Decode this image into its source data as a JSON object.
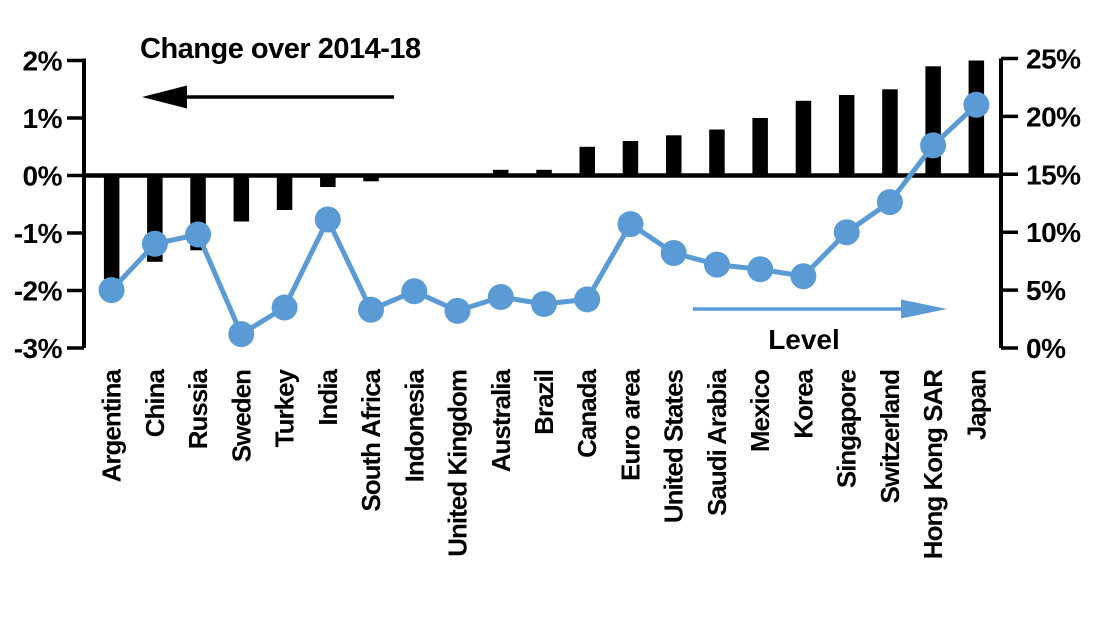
{
  "chart_data": {
    "type": "combo-bar-line",
    "categories": [
      "Argentina",
      "China",
      "Russia",
      "Sweden",
      "Turkey",
      "India",
      "South Africa",
      "Indonesia",
      "United Kingdom",
      "Australia",
      "Brazil",
      "Canada",
      "Euro area",
      "United States",
      "Saudi Arabia",
      "Mexico",
      "Korea",
      "Singapore",
      "Switzerland",
      "Hong Kong SAR",
      "Japan"
    ],
    "series": [
      {
        "name": "Change over 2014-18",
        "type": "bar",
        "axis": "left",
        "color": "#000000",
        "values": [
          -1.8,
          -1.5,
          -1.3,
          -0.8,
          -0.6,
          -0.2,
          -0.1,
          0,
          0,
          0.1,
          0.1,
          0.5,
          0.6,
          0.7,
          0.8,
          1.0,
          1.3,
          1.4,
          1.5,
          1.9,
          2.0
        ]
      },
      {
        "name": "Level",
        "type": "line",
        "axis": "right",
        "color": "#5B9BD5",
        "values": [
          5.0,
          9.0,
          9.8,
          1.2,
          3.5,
          11.1,
          3.3,
          4.9,
          3.2,
          4.4,
          3.8,
          4.2,
          10.7,
          8.2,
          7.2,
          6.8,
          6.2,
          10.0,
          12.6,
          17.5,
          21.0
        ]
      }
    ],
    "left_axis": {
      "tick_labels": [
        "2%",
        "1%",
        "0%",
        "-1%",
        "-2%",
        "-3%"
      ],
      "tick_values": [
        2,
        1,
        0,
        -1,
        -2,
        -3
      ],
      "min": -3,
      "max": 2
    },
    "right_axis": {
      "tick_labels": [
        "25%",
        "20%",
        "15%",
        "10%",
        "5%",
        "0%"
      ],
      "tick_values": [
        25,
        20,
        15,
        10,
        5,
        0
      ],
      "min": 0,
      "max": 25
    },
    "annotations": {
      "bar_arrow_direction": "left",
      "line_arrow_direction": "right"
    },
    "grid": false,
    "legend_position": "in-plot-arrows",
    "background": "#ffffff"
  }
}
